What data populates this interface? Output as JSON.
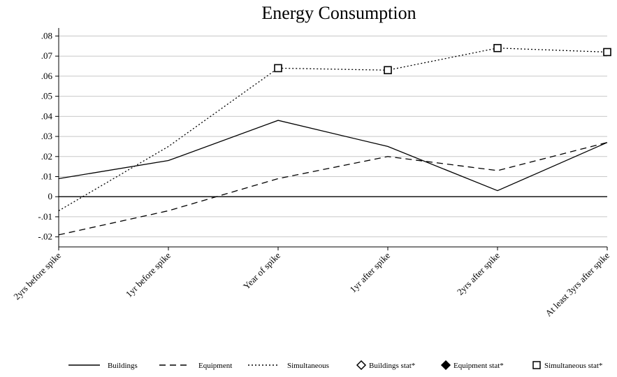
{
  "chart_data": {
    "type": "line",
    "title": "Energy Consumption",
    "xlabel": "",
    "ylabel": "",
    "categories": [
      "2yrs before spike",
      "1yr before spike",
      "Year of spike",
      "1yr after spike",
      "2yrs after spike",
      "At least 3yrs after spike"
    ],
    "yticks": [
      -0.02,
      -0.01,
      0,
      0.01,
      0.02,
      0.03,
      0.04,
      0.05,
      0.06,
      0.07,
      0.08
    ],
    "ytick_labels": [
      "-.02",
      "-.01",
      "0",
      ".01",
      ".02",
      ".03",
      ".04",
      ".05",
      ".06",
      ".07",
      ".08"
    ],
    "ylim": [
      -0.025,
      0.084
    ],
    "grid": true,
    "reference_line": 0,
    "series": [
      {
        "name": "Buildings",
        "values": [
          0.009,
          0.018,
          0.038,
          0.025,
          0.003,
          0.027
        ],
        "style": "solid",
        "color": "#000000"
      },
      {
        "name": "Equipment",
        "values": [
          -0.019,
          -0.007,
          0.009,
          0.02,
          0.013,
          0.027
        ],
        "style": "dashed",
        "color": "#000000"
      },
      {
        "name": "Simultaneous",
        "values": [
          -0.007,
          0.025,
          0.064,
          0.063,
          0.074,
          0.072
        ],
        "style": "dotted",
        "color": "#000000"
      }
    ],
    "markers": [
      {
        "name": "Simultaneous stat*",
        "shape": "square",
        "points": [
          {
            "x": "Year of spike",
            "y": 0.064
          },
          {
            "x": "1yr after spike",
            "y": 0.063
          },
          {
            "x": "2yrs after spike",
            "y": 0.074
          },
          {
            "x": "At least 3yrs after spike",
            "y": 0.072
          }
        ]
      }
    ],
    "legend": {
      "position": "bottom",
      "items": [
        {
          "label": "Buildings",
          "symbol": "solid-line"
        },
        {
          "label": "Equipment",
          "symbol": "dashed-line"
        },
        {
          "label": "Simultaneous",
          "symbol": "dotted-line"
        },
        {
          "label": "Buildings stat*",
          "symbol": "hollow-diamond"
        },
        {
          "label": "Equipment stat*",
          "symbol": "filled-diamond"
        },
        {
          "label": "Simultaneous stat*",
          "symbol": "hollow-square"
        }
      ]
    }
  }
}
